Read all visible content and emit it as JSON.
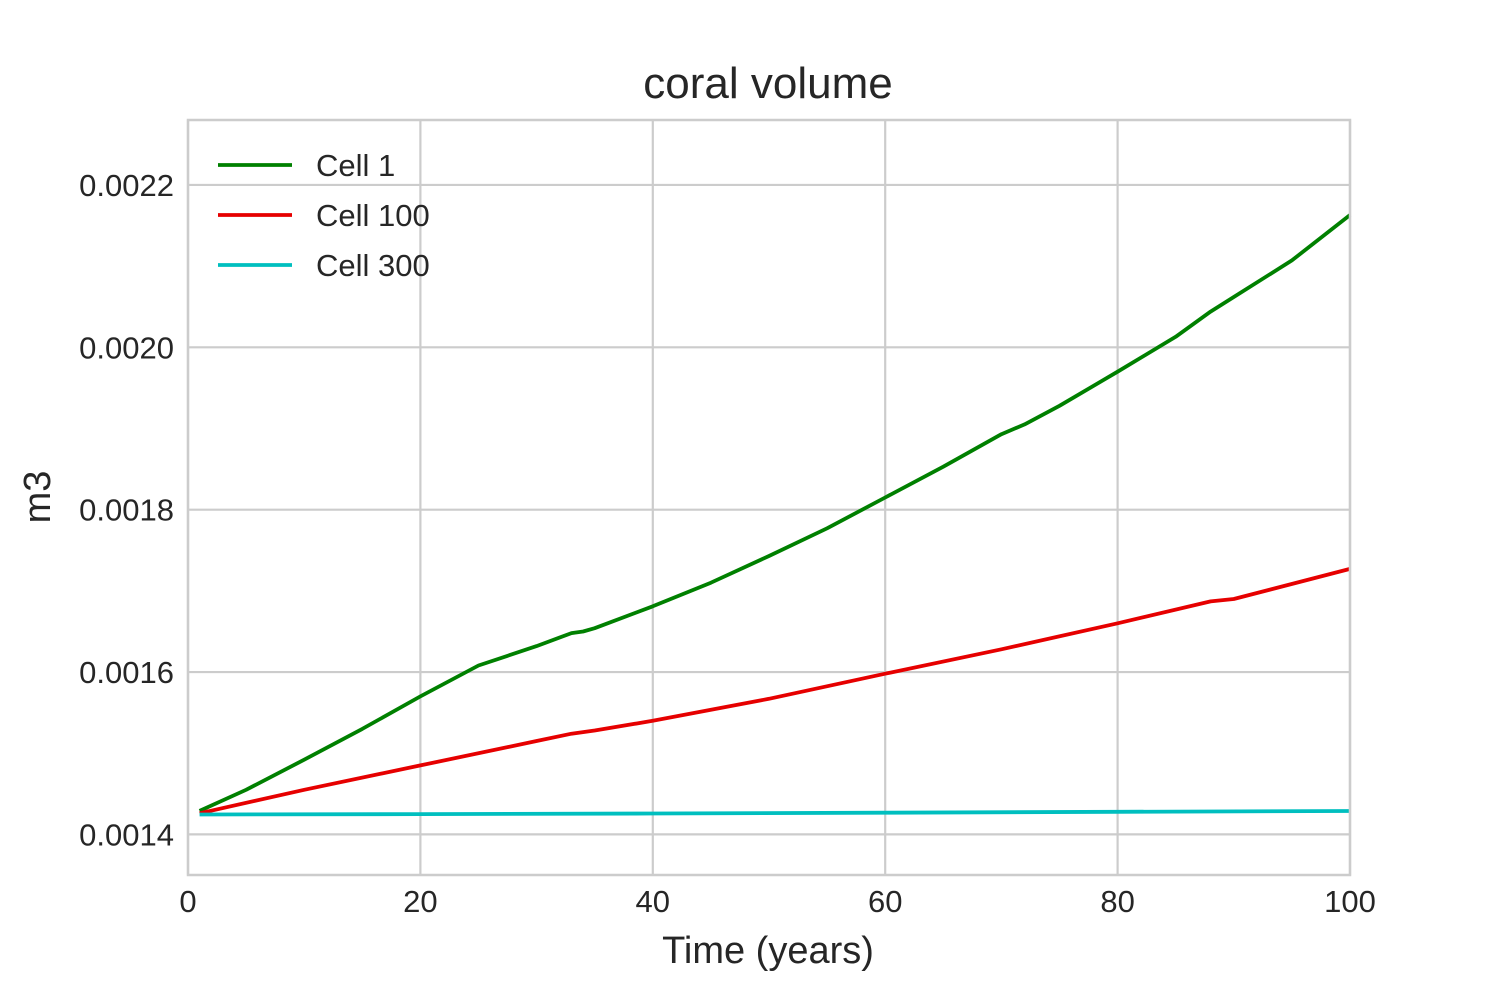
{
  "chart_data": {
    "type": "line",
    "title": "coral volume",
    "xlabel": "Time (years)",
    "ylabel": "m3",
    "xlim": [
      0,
      100
    ],
    "ylim": [
      0.00135,
      0.00228
    ],
    "xticks": [
      0,
      20,
      40,
      60,
      80,
      100
    ],
    "xtick_labels": [
      "0",
      "20",
      "40",
      "60",
      "80",
      "100"
    ],
    "yticks": [
      0.0014,
      0.0016,
      0.0018,
      0.002,
      0.0022
    ],
    "ytick_labels": [
      "0.0014",
      "0.0016",
      "0.0018",
      "0.0020",
      "0.0022"
    ],
    "grid": true,
    "legend_position": "top-left",
    "series": [
      {
        "name": "Cell 1",
        "color": "#008000",
        "x": [
          1,
          5,
          10,
          15,
          20,
          25,
          30,
          33,
          34,
          35,
          40,
          45,
          50,
          55,
          60,
          65,
          70,
          72,
          75,
          80,
          85,
          88,
          90,
          95,
          100
        ],
        "y": [
          0.001429,
          0.001455,
          0.001492,
          0.00153,
          0.00157,
          0.001608,
          0.001632,
          0.001648,
          0.00165,
          0.001654,
          0.001681,
          0.00171,
          0.001743,
          0.001777,
          0.001815,
          0.001853,
          0.001893,
          0.001905,
          0.001928,
          0.00197,
          0.002013,
          0.002044,
          0.002062,
          0.002107,
          0.002163
        ]
      },
      {
        "name": "Cell 100",
        "color": "#e60000",
        "x": [
          1,
          10,
          20,
          30,
          33,
          35,
          40,
          50,
          60,
          70,
          80,
          88,
          90,
          100
        ],
        "y": [
          0.001426,
          0.001455,
          0.001485,
          0.001515,
          0.001524,
          0.001528,
          0.00154,
          0.001567,
          0.001598,
          0.001628,
          0.00166,
          0.001687,
          0.00169,
          0.001727
        ]
      },
      {
        "name": "Cell 300",
        "color": "#00bfbf",
        "x": [
          1,
          20,
          40,
          60,
          80,
          100
        ],
        "y": [
          0.0014245,
          0.001425,
          0.0014258,
          0.0014268,
          0.0014278,
          0.0014288
        ]
      }
    ]
  }
}
